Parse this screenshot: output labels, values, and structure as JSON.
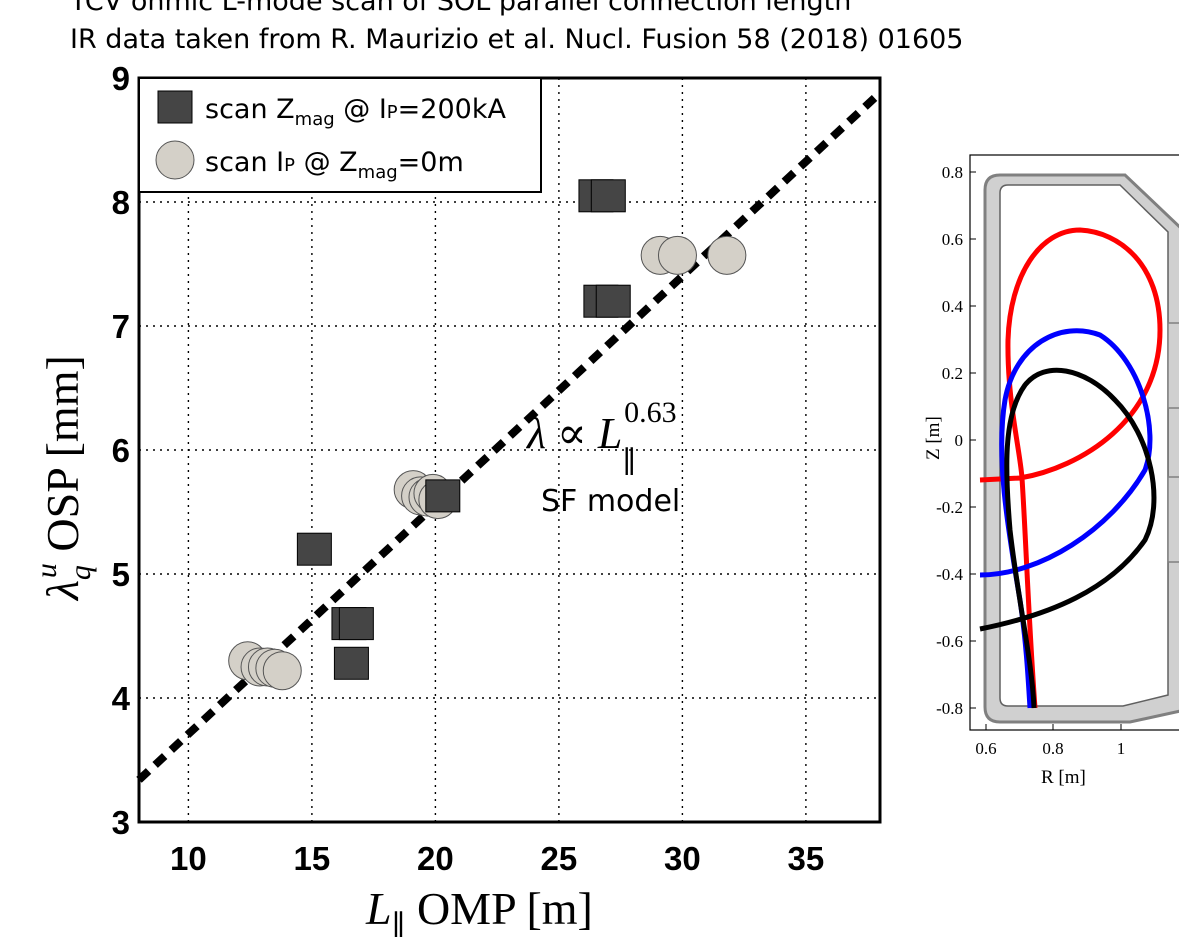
{
  "header": {
    "line1": "TCV ohmic L-mode scan of SOL parallel connection length",
    "line2": "IR data taken from R. Maurizio et al. Nucl. Fusion 58 (2018) 01605"
  },
  "chart_data": [
    {
      "type": "scatter",
      "xlabel": "L∥ OMP [m]",
      "ylabel": "λqu OSP [mm]",
      "xlim": [
        8,
        38
      ],
      "ylim": [
        3,
        9
      ],
      "xticks": [
        10,
        15,
        20,
        25,
        30,
        35
      ],
      "yticks": [
        3,
        4,
        5,
        6,
        7,
        8,
        9
      ],
      "grid": true,
      "legend_position": "top-left",
      "series": [
        {
          "name": "scan Zmag @ IP=200kA",
          "marker": "square",
          "color": "#454545",
          "x": [
            26.5,
            27.0,
            26.7,
            27.2,
            15.1,
            20.3,
            16.5,
            16.8,
            16.6
          ],
          "y": [
            8.05,
            8.05,
            7.2,
            7.2,
            5.2,
            5.63,
            4.6,
            4.6,
            4.28
          ]
        },
        {
          "name": "scan IP @ Zmag=0m",
          "marker": "circle",
          "color": "#d4d0c8",
          "x": [
            29.1,
            29.8,
            31.8,
            19.1,
            19.4,
            19.7,
            19.9,
            20.1,
            12.4,
            12.9,
            13.2,
            13.5,
            13.8
          ],
          "y": [
            7.57,
            7.57,
            7.57,
            5.68,
            5.63,
            5.62,
            5.65,
            5.6,
            4.3,
            4.25,
            4.25,
            4.24,
            4.22
          ]
        }
      ],
      "fit_line": {
        "x": [
          8,
          38
        ],
        "y": [
          3.34,
          8.88
        ],
        "style": "dashed",
        "color": "#000000"
      },
      "annotation": {
        "formula_main": "λ ∝ L",
        "formula_sub": "∥",
        "formula_sup": "0.63",
        "label": "SF model"
      },
      "legend": {
        "entry1": {
          "a": "scan Z",
          "sub": "mag",
          "b": " @ I",
          "sub2": "P",
          "c": "=200kA"
        },
        "entry2": {
          "a": "scan I",
          "sub": "P",
          "b": " @ Z",
          "sub2": "mag",
          "c": "=0m"
        }
      },
      "axis_labels": {
        "x_main": "L",
        "x_sub": "∥",
        "x_rest": " OMP [m]",
        "y_main": "λ",
        "y_sub": "q",
        "y_sup": "u",
        "y_rest": " OSP [mm]"
      }
    },
    {
      "type": "line",
      "xlabel": "R [m]",
      "ylabel": "Z [m]",
      "xlim": [
        0.57,
        1.15
      ],
      "ylim": [
        -0.83,
        0.83
      ],
      "xticks": [
        "0.6",
        "0.8",
        "1",
        "1"
      ],
      "yticks": [
        "0.8",
        "0.6",
        "0.4",
        "0.2",
        "0",
        "-0.2",
        "-0.4",
        "-0.6",
        "-0.8"
      ],
      "series": [
        {
          "name": "",
          "color": "#ff0000"
        },
        {
          "name": "",
          "color": "#0000ff"
        },
        {
          "name": "",
          "color": "#000000"
        }
      ]
    }
  ]
}
